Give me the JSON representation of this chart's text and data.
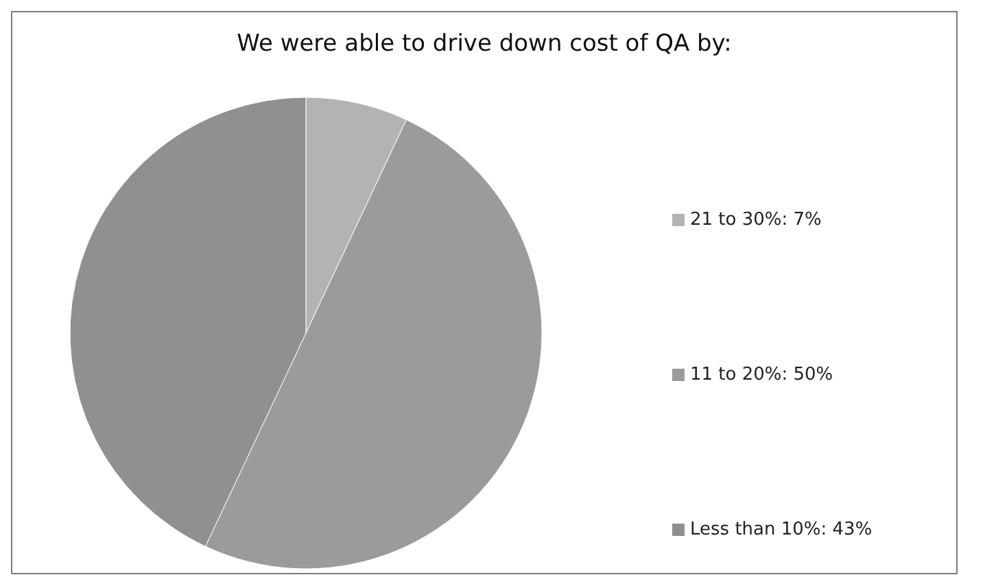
{
  "chart_data": {
    "type": "pie",
    "title": "We were able to drive down cost of QA by:",
    "categories": [
      "21 to 30%",
      "11 to 20%",
      "Less than 10%"
    ],
    "values": [
      7,
      50,
      43
    ],
    "value_labels": [
      "7%",
      "50%",
      "43%"
    ],
    "colors": [
      "#b3b3b4",
      "#9b9b9d",
      "#909092"
    ],
    "legend": "right"
  }
}
